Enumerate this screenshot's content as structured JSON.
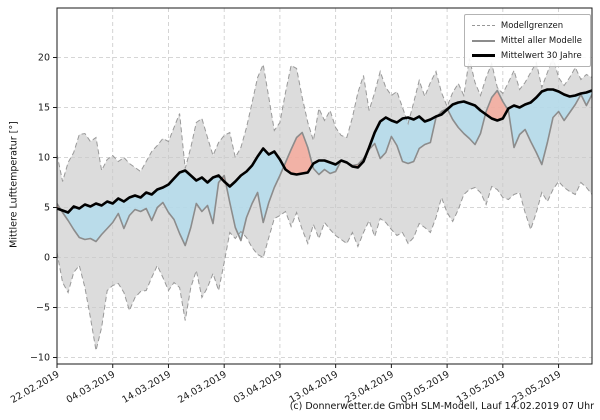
{
  "figure": {
    "footer": "(c) Donnerwetter.de GmbH SLM-Modell, Lauf 14.02.2019 07 Uhr"
  },
  "chart_data": {
    "type": "line",
    "title": "",
    "xlabel": "",
    "ylabel": "Mittlere Lufttemperatur [°]",
    "grid": true,
    "legend": {
      "position": "upper right",
      "entries": [
        {
          "label": "Modellgrenzen",
          "style": "dashed-gray"
        },
        {
          "label": "Mittel aller Modelle",
          "style": "solid-gray"
        },
        {
          "label": "Mittelwert 30 Jahre",
          "style": "solid-black-thick"
        }
      ]
    },
    "x_start_label": "22.02.2019",
    "x_tick_days": [
      0,
      10,
      20,
      30,
      40,
      50,
      60,
      70,
      80,
      90
    ],
    "x_tick_labels": [
      "22.02.2019",
      "04.03.2019",
      "14.03.2019",
      "24.03.2019",
      "03.04.2019",
      "13.04.2019",
      "23.04.2019",
      "03.05.2019",
      "13.05.2019",
      "23.05.2019"
    ],
    "xlim_days": [
      0,
      96
    ],
    "y_ticks": [
      20,
      15,
      10,
      5,
      0,
      -5,
      -10
    ],
    "y_tick_labels": [
      "20",
      "15",
      "10",
      "5",
      "0",
      "−5",
      "−10"
    ],
    "ylim": [
      -10.65,
      24.95
    ],
    "series": [
      {
        "name": "Modellgrenzen (Obergrenze)",
        "role": "band_max",
        "values": [
          10.3,
          7.6,
          9.5,
          10.5,
          12.3,
          12.4,
          11.6,
          12.0,
          8.7,
          9.8,
          10.2,
          9.6,
          10.0,
          9.4,
          9.0,
          8.6,
          9.6,
          10.6,
          11.2,
          11.9,
          11.6,
          13.0,
          14.4,
          8.9,
          11.0,
          13.5,
          13.9,
          12.0,
          10.2,
          11.5,
          12.2,
          12.5,
          10.0,
          11.0,
          13.0,
          15.5,
          18.0,
          19.3,
          16.0,
          12.7,
          13.5,
          16.5,
          19.2,
          18.9,
          16.0,
          13.5,
          11.7,
          14.9,
          13.7,
          14.7,
          13.0,
          12.2,
          12.0,
          14.0,
          16.5,
          18.2,
          14.7,
          16.5,
          18.6,
          17.0,
          16.2,
          16.6,
          15.0,
          13.4,
          15.5,
          17.7,
          16.1,
          17.5,
          18.6,
          16.5,
          15.1,
          16.5,
          17.4,
          16.2,
          19.9,
          17.5,
          16.2,
          18.0,
          19.4,
          17.0,
          16.4,
          17.5,
          18.7,
          16.8,
          17.5,
          18.5,
          19.5,
          17.0,
          18.5,
          20.0,
          18.0,
          17.2,
          18.0,
          19.0,
          17.8,
          18.3,
          18.0
        ]
      },
      {
        "name": "Modellgrenzen (Untergrenze)",
        "role": "band_min",
        "values": [
          0.5,
          -2.5,
          -3.5,
          -1.5,
          -0.8,
          -3.0,
          -6.0,
          -9.3,
          -7.0,
          -3.3,
          -2.8,
          -2.6,
          -3.5,
          -5.3,
          -4.0,
          -3.4,
          -3.3,
          -2.0,
          -0.8,
          -2.0,
          -3.3,
          -2.5,
          -3.0,
          -6.3,
          -3.0,
          -1.3,
          -4.0,
          -3.0,
          -1.6,
          -3.3,
          -0.5,
          2.5,
          1.9,
          2.6,
          2.0,
          1.0,
          0.3,
          0.0,
          2.0,
          3.9,
          4.2,
          4.6,
          3.1,
          4.5,
          2.8,
          1.4,
          3.3,
          1.9,
          3.5,
          2.8,
          2.2,
          1.8,
          1.4,
          2.5,
          1.1,
          2.5,
          3.7,
          2.1,
          3.9,
          3.5,
          2.8,
          2.2,
          2.5,
          1.4,
          2.0,
          3.4,
          3.0,
          2.5,
          4.0,
          6.0,
          4.5,
          3.6,
          4.8,
          6.3,
          6.8,
          7.0,
          6.5,
          5.3,
          7.1,
          6.8,
          6.0,
          5.8,
          6.3,
          6.5,
          4.5,
          2.8,
          4.5,
          6.5,
          5.6,
          6.8,
          7.6,
          7.0,
          6.6,
          6.3,
          7.5,
          7.0,
          6.3
        ]
      },
      {
        "name": "Mittel aller Modelle",
        "role": "model_mean",
        "values": [
          5.4,
          4.5,
          3.7,
          2.8,
          2.0,
          1.8,
          1.9,
          1.6,
          2.3,
          2.9,
          3.5,
          4.4,
          2.9,
          4.2,
          4.8,
          4.6,
          4.9,
          3.7,
          5.0,
          5.5,
          4.5,
          3.8,
          2.4,
          1.2,
          3.0,
          5.4,
          4.6,
          5.2,
          3.4,
          7.5,
          8.2,
          5.5,
          3.0,
          1.7,
          4.0,
          5.4,
          6.5,
          3.5,
          5.5,
          7.0,
          8.2,
          9.5,
          10.8,
          12.0,
          12.5,
          11.0,
          8.9,
          8.3,
          8.8,
          8.4,
          8.6,
          9.7,
          9.5,
          9.2,
          9.3,
          9.9,
          10.8,
          11.4,
          9.9,
          10.5,
          12.1,
          11.2,
          9.6,
          9.4,
          9.6,
          10.9,
          11.3,
          11.5,
          14.0,
          14.6,
          14.9,
          13.8,
          13.0,
          12.4,
          11.9,
          11.3,
          12.4,
          14.6,
          16.0,
          16.7,
          15.6,
          14.7,
          11.0,
          12.3,
          12.8,
          11.6,
          10.5,
          9.3,
          11.5,
          14.0,
          14.6,
          13.7,
          14.5,
          15.3,
          16.3,
          15.2,
          16.3
        ]
      },
      {
        "name": "Mittelwert 30 Jahre",
        "role": "mean30",
        "values": [
          4.9,
          4.7,
          4.5,
          5.1,
          4.9,
          5.3,
          5.1,
          5.4,
          5.2,
          5.6,
          5.4,
          5.9,
          5.6,
          6.0,
          6.2,
          6.0,
          6.5,
          6.3,
          6.8,
          7.0,
          7.3,
          7.9,
          8.5,
          8.7,
          8.2,
          7.7,
          8.0,
          7.5,
          8.0,
          8.2,
          7.6,
          7.1,
          7.6,
          8.2,
          8.6,
          9.2,
          10.1,
          10.9,
          10.3,
          10.6,
          9.8,
          8.8,
          8.4,
          8.3,
          8.4,
          8.5,
          9.4,
          9.7,
          9.7,
          9.5,
          9.3,
          9.7,
          9.5,
          9.1,
          9.0,
          9.6,
          11.0,
          12.5,
          13.6,
          14.0,
          13.7,
          13.5,
          13.9,
          14.0,
          13.8,
          14.1,
          13.6,
          13.8,
          14.1,
          14.3,
          14.8,
          15.3,
          15.5,
          15.6,
          15.4,
          15.2,
          14.7,
          14.3,
          13.9,
          13.7,
          13.9,
          14.9,
          15.2,
          15.0,
          15.3,
          15.5,
          16.0,
          16.6,
          16.8,
          16.8,
          16.6,
          16.3,
          16.1,
          16.2,
          16.4,
          16.5,
          16.7
        ]
      }
    ],
    "colors": {
      "band_fill": "#dcdcdc",
      "band_edge": "#999999",
      "below_mean_fill": "#b1dcee",
      "above_mean_fill": "#f9a797",
      "fill_opacity": 0.78,
      "model_mean_line": "#8c8c8c",
      "mean30_line": "#000000",
      "grid": "#c9c9c9",
      "spine": "#1a1a1a",
      "tick_text": "#1a1a1a"
    }
  }
}
